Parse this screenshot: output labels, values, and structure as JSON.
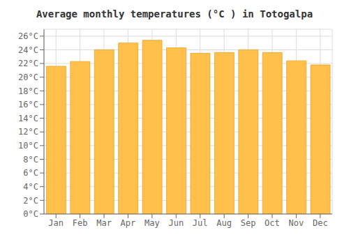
{
  "chart_data": {
    "type": "bar",
    "title": "Average monthly temperatures (°C ) in Totogalpa",
    "categories": [
      "Jan",
      "Feb",
      "Mar",
      "Apr",
      "May",
      "Jun",
      "Jul",
      "Aug",
      "Sep",
      "Oct",
      "Nov",
      "Dec"
    ],
    "values": [
      21.6,
      22.3,
      24.0,
      25.0,
      25.4,
      24.3,
      23.5,
      23.6,
      24.0,
      23.6,
      22.4,
      21.8
    ],
    "color": "#FFC04C",
    "ylim": [
      0,
      27
    ],
    "yticks": [
      {
        "value": 0,
        "label": "0°C"
      },
      {
        "value": 2,
        "label": "2°C"
      },
      {
        "value": 4,
        "label": "4°C"
      },
      {
        "value": 6,
        "label": "6°C"
      },
      {
        "value": 8,
        "label": "8°C"
      },
      {
        "value": 10,
        "label": "10°C"
      },
      {
        "value": 12,
        "label": "12°C"
      },
      {
        "value": 14,
        "label": "14°C"
      },
      {
        "value": 16,
        "label": "16°C"
      },
      {
        "value": 18,
        "label": "18°C"
      },
      {
        "value": 20,
        "label": "20°C"
      },
      {
        "value": 22,
        "label": "22°C"
      },
      {
        "value": 24,
        "label": "24°C"
      },
      {
        "value": 26,
        "label": "26°C"
      }
    ],
    "grid": true
  }
}
